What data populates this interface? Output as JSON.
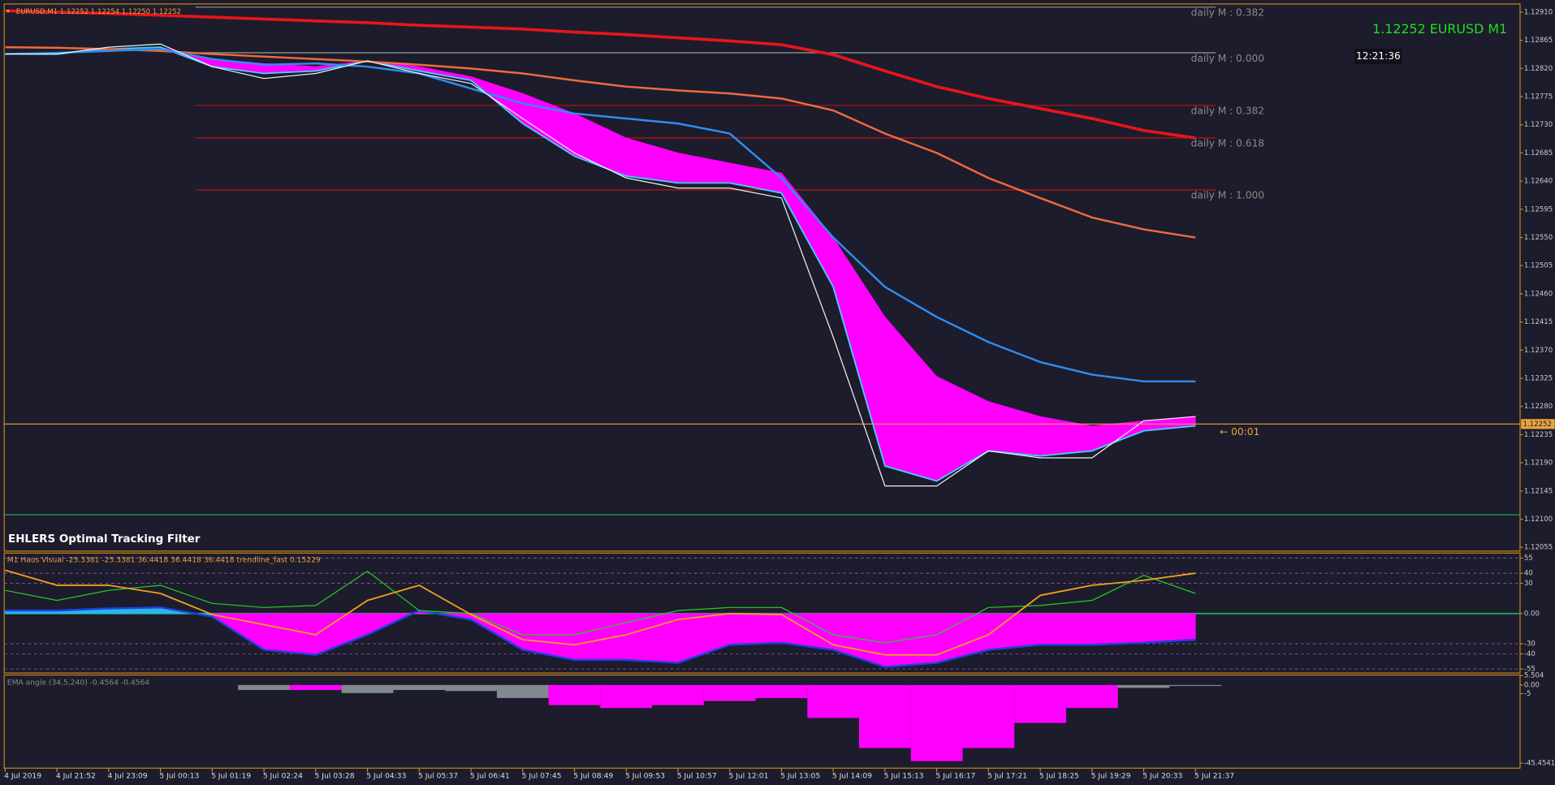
{
  "header": "EURUSD,M1  1.12252 1.12254 1.12250 1.12252",
  "symbol_label": "1.12252 EURUSD M1",
  "clock": "12:21:36",
  "countdown": "← 00:01",
  "chart_data": [
    {
      "type": "line",
      "title": "EHLERS Optimal Tracking Filter",
      "categories": [
        "4 Jul 2019",
        "4 Jul 21:52",
        "4 Jul 23:09",
        "5 Jul 00:13",
        "5 Jul 01:19",
        "5 Jul 02:24",
        "5 Jul 03:28",
        "5 Jul 04:33",
        "5 Jul 05:37",
        "5 Jul 06:41",
        "5 Jul 07:45",
        "5 Jul 08:49",
        "5 Jul 09:53",
        "5 Jul 10:57",
        "5 Jul 12:01",
        "5 Jul 13:05",
        "5 Jul 14:09",
        "5 Jul 15:13",
        "5 Jul 16:17",
        "5 Jul 17:21",
        "5 Jul 18:25",
        "5 Jul 19:29",
        "5 Jul 20:33",
        "5 Jul 21:37"
      ],
      "ylim": [
        1.12049,
        1.12923
      ],
      "yticks": [
        {
          "value": 1.1291,
          "label": "1.12910"
        },
        {
          "value": 1.12865,
          "label": "1.12865"
        },
        {
          "value": 1.1282,
          "label": "1.12820"
        },
        {
          "value": 1.12775,
          "label": "1.12775"
        },
        {
          "value": 1.1273,
          "label": "1.12730"
        },
        {
          "value": 1.12685,
          "label": "1.12685"
        },
        {
          "value": 1.1264,
          "label": "1.12640"
        },
        {
          "value": 1.12595,
          "label": "1.12595"
        },
        {
          "value": 1.1255,
          "label": "1.12550"
        },
        {
          "value": 1.12505,
          "label": "1.12505"
        },
        {
          "value": 1.1246,
          "label": "1.12460"
        },
        {
          "value": 1.12415,
          "label": "1.12415"
        },
        {
          "value": 1.1237,
          "label": "1.12370"
        },
        {
          "value": 1.12325,
          "label": "1.12325"
        },
        {
          "value": 1.1228,
          "label": "1.12280"
        },
        {
          "value": 1.12235,
          "label": "1.12235"
        },
        {
          "value": 1.1219,
          "label": "1.12190"
        },
        {
          "value": 1.12145,
          "label": "1.12145"
        },
        {
          "value": 1.121,
          "label": "1.12100"
        },
        {
          "value": 1.12055,
          "label": "1.12055"
        }
      ],
      "bands": [
        {
          "color": "#ff00ff",
          "edge_color": "#3fd0ff",
          "upper": [
            1.12843,
            1.12843,
            1.12851,
            1.12854,
            1.12835,
            1.12828,
            1.12823,
            1.12832,
            1.12823,
            1.12807,
            1.1278,
            1.12748,
            1.12709,
            1.12685,
            1.12669,
            1.12653,
            1.1255,
            1.12423,
            1.12328,
            1.12288,
            1.12264,
            1.12249,
            1.12257,
            1.12264
          ],
          "lower": [
            1.12843,
            1.12843,
            1.12851,
            1.12854,
            1.12823,
            1.12812,
            1.12816,
            1.12832,
            1.12816,
            1.12801,
            1.12732,
            1.1268,
            1.12648,
            1.12637,
            1.12637,
            1.12621,
            1.12471,
            1.12185,
            1.12161,
            1.12209,
            1.12201,
            1.12209,
            1.12241,
            1.12249
          ]
        }
      ],
      "series": [
        {
          "color": "#e8141c",
          "width": 3,
          "values": [
            1.12912,
            1.1291,
            1.12908,
            1.12905,
            1.12902,
            1.12899,
            1.12896,
            1.12893,
            1.12889,
            1.12886,
            1.12883,
            1.12878,
            1.12874,
            1.12869,
            1.12864,
            1.12858,
            1.12842,
            1.12816,
            1.12791,
            1.12772,
            1.12756,
            1.1274,
            1.12721,
            1.12709
          ]
        },
        {
          "color": "#f06a3c",
          "width": 2,
          "values": [
            1.12854,
            1.12853,
            1.12851,
            1.12848,
            1.12843,
            1.12839,
            1.12835,
            1.12831,
            1.12826,
            1.1282,
            1.12812,
            1.12801,
            1.12791,
            1.12785,
            1.1278,
            1.12772,
            1.12753,
            1.12716,
            1.12685,
            1.12645,
            1.12613,
            1.12582,
            1.12563,
            1.1255
          ]
        },
        {
          "color": "#2e8ef0",
          "width": 2,
          "values": [
            1.12843,
            1.12845,
            1.12848,
            1.12851,
            1.12835,
            1.12826,
            1.12828,
            1.12823,
            1.12812,
            1.12788,
            1.12764,
            1.12748,
            1.1274,
            1.12732,
            1.12716,
            1.12645,
            1.1255,
            1.12471,
            1.12423,
            1.12383,
            1.12351,
            1.12331,
            1.1232,
            1.1232
          ]
        },
        {
          "color": "#f2f2f2",
          "width": 1,
          "values": [
            1.12843,
            1.12843,
            1.12854,
            1.12859,
            1.12823,
            1.12804,
            1.12812,
            1.12832,
            1.12812,
            1.12796,
            1.1274,
            1.12685,
            1.12645,
            1.12629,
            1.12629,
            1.12613,
            1.12391,
            1.12153,
            1.12153,
            1.12209,
            1.12198,
            1.12198,
            1.12257,
            1.12264
          ]
        }
      ],
      "levels": [
        {
          "value": 1.12918,
          "label": "daily M : 0.382",
          "color": "#8a8a8a"
        },
        {
          "value": 1.12845,
          "label": "daily M : 0.000",
          "color": "#9a9a9a"
        },
        {
          "value": 1.12761,
          "label": "daily M : 0.382",
          "color": "#c01010"
        },
        {
          "value": 1.12709,
          "label": "daily M : 0.618",
          "color": "#c01010"
        },
        {
          "value": 1.12626,
          "label": "daily M : 1.000",
          "color": "#c01010"
        },
        {
          "value": 1.12107,
          "color": "#1fa35a"
        }
      ],
      "current_price": 1.12252,
      "current_price_color": "#e8a33c"
    },
    {
      "type": "line",
      "title": "M1 Haos Visual -25.3381 -25.3381 36.4418 36.4418 36.4418  trendline_fast 0.15229",
      "ylim": [
        -59,
        60
      ],
      "yticks": [
        55,
        40,
        30,
        {
          "value": 0,
          "label": "0.00"
        },
        -30,
        -40,
        -55
      ],
      "grid": "dashed",
      "zero_color": "#1fa35a",
      "area_colors": {
        "positive": "#29b6e8",
        "negative": "#ff00ff"
      },
      "series": [
        {
          "color": "#2040e0",
          "width": 2,
          "area": true,
          "values": [
            3,
            3,
            5,
            6,
            -3,
            -36,
            -41,
            -21,
            3,
            -6,
            -36,
            -46,
            -46,
            -49,
            -31,
            -29,
            -36,
            -53,
            -49,
            -36,
            -31,
            -31,
            -29,
            -26
          ]
        },
        {
          "color": "#22d022",
          "width": 1,
          "values": [
            23,
            13,
            23,
            28,
            10,
            6,
            8,
            42,
            3,
            0,
            -21,
            -21,
            -9,
            3,
            6,
            6,
            -21,
            -29,
            -21,
            6,
            8,
            13,
            38,
            20
          ]
        },
        {
          "color": "#f0a020",
          "width": 1.5,
          "values": [
            43,
            28,
            28,
            20,
            -1,
            -11,
            -21,
            13,
            28,
            -1,
            -26,
            -31,
            -21,
            -6,
            0,
            -1,
            -31,
            -41,
            -41,
            -21,
            18,
            28,
            33,
            40
          ]
        }
      ]
    },
    {
      "type": "bar",
      "title": "EMA angle (34,5,240) -0.4564 -0.4564",
      "ylim": [
        -48.4,
        5.83
      ],
      "yticks": [
        5.504,
        {
          "value": 0,
          "label": "0.00"
        },
        -5,
        -45.4541
      ],
      "values": [
        0,
        0,
        0,
        0,
        0,
        -2.9,
        -2.9,
        -4.7,
        -2.9,
        -3.5,
        -7.6,
        -11.7,
        -13.4,
        -11.7,
        -9.3,
        -7.6,
        -19.2,
        -36.7,
        -44.3,
        -36.7,
        -22.1,
        -13.4,
        -1.7,
        -0.6
      ],
      "colors": [
        "#808890",
        "#808890",
        "#808890",
        "#808890",
        "#808890",
        "#808890",
        "#ff00ff",
        "#808890",
        "#808890",
        "#808890",
        "#808890",
        "#ff00ff",
        "#ff00ff",
        "#ff00ff",
        "#ff00ff",
        "#ff00ff",
        "#ff00ff",
        "#ff00ff",
        "#ff00ff",
        "#ff00ff",
        "#ff00ff",
        "#ff00ff",
        "#808890",
        "#808890"
      ]
    }
  ]
}
